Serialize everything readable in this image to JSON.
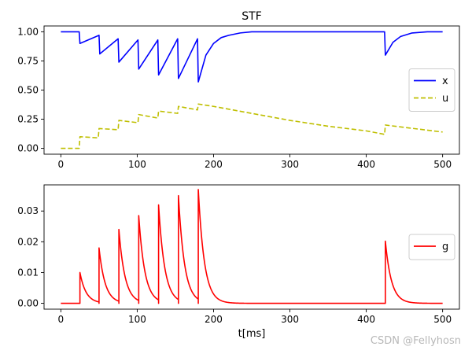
{
  "watermark": "CSDN @Fellyhosn",
  "chart_data": [
    {
      "type": "line",
      "title": "STF",
      "xlabel": "",
      "ylabel": "",
      "xlim": [
        -22,
        522
      ],
      "ylim": [
        -0.05,
        1.05
      ],
      "xticks": [
        0,
        100,
        200,
        300,
        400,
        500
      ],
      "xtick_labels": [
        "0",
        "100",
        "200",
        "300",
        "400",
        "500"
      ],
      "yticks": [
        0.0,
        0.25,
        0.5,
        0.75,
        1.0
      ],
      "ytick_labels": [
        "0.00",
        "0.25",
        "0.50",
        "0.75",
        "1.00"
      ],
      "legend_position": "center-right",
      "series": [
        {
          "name": "x",
          "color": "#0000ff",
          "style": "solid",
          "x": [
            0,
            24,
            25,
            50,
            51,
            75,
            76,
            101,
            102,
            127,
            128,
            153,
            154,
            179,
            180,
            190,
            200,
            210,
            220,
            235,
            250,
            270,
            300,
            350,
            400,
            424,
            425,
            435,
            445,
            460,
            480,
            500
          ],
          "y": [
            1.0,
            1.0,
            0.9,
            0.97,
            0.81,
            0.94,
            0.74,
            0.93,
            0.68,
            0.93,
            0.63,
            0.94,
            0.6,
            0.94,
            0.57,
            0.8,
            0.9,
            0.95,
            0.97,
            0.99,
            1.0,
            1.0,
            1.0,
            1.0,
            1.0,
            1.0,
            0.8,
            0.91,
            0.96,
            0.99,
            1.0,
            1.0
          ]
        },
        {
          "name": "u",
          "color": "#bfbf00",
          "style": "dashed",
          "x": [
            0,
            24,
            25,
            49,
            50,
            75,
            76,
            101,
            102,
            127,
            128,
            153,
            154,
            179,
            180,
            200,
            250,
            300,
            350,
            400,
            424,
            425,
            450,
            500
          ],
          "y": [
            0.0,
            0.0,
            0.1,
            0.09,
            0.17,
            0.16,
            0.24,
            0.22,
            0.29,
            0.26,
            0.32,
            0.3,
            0.36,
            0.33,
            0.38,
            0.36,
            0.3,
            0.24,
            0.19,
            0.15,
            0.12,
            0.2,
            0.18,
            0.14
          ]
        }
      ]
    },
    {
      "type": "line",
      "title": "",
      "xlabel": "t[ms]",
      "ylabel": "",
      "xlim": [
        -22,
        522
      ],
      "ylim": [
        -0.0019,
        0.0385
      ],
      "xticks": [
        0,
        100,
        200,
        300,
        400,
        500
      ],
      "xtick_labels": [
        "0",
        "100",
        "200",
        "300",
        "400",
        "500"
      ],
      "yticks": [
        0.0,
        0.01,
        0.02,
        0.03
      ],
      "ytick_labels": [
        "0.00",
        "0.01",
        "0.02",
        "0.03"
      ],
      "legend_position": "center-right",
      "series": [
        {
          "name": "g",
          "color": "#ff0000",
          "style": "solid",
          "spikes": [
            {
              "t": 25,
              "peak": 0.01
            },
            {
              "t": 50,
              "peak": 0.018
            },
            {
              "t": 76,
              "peak": 0.024
            },
            {
              "t": 102,
              "peak": 0.0285
            },
            {
              "t": 128,
              "peak": 0.032
            },
            {
              "t": 154,
              "peak": 0.035
            },
            {
              "t": 180,
              "peak": 0.037
            },
            {
              "t": 425,
              "peak": 0.0202
            }
          ],
          "decay_tau_ms": 8,
          "t_end": 500
        }
      ]
    }
  ]
}
